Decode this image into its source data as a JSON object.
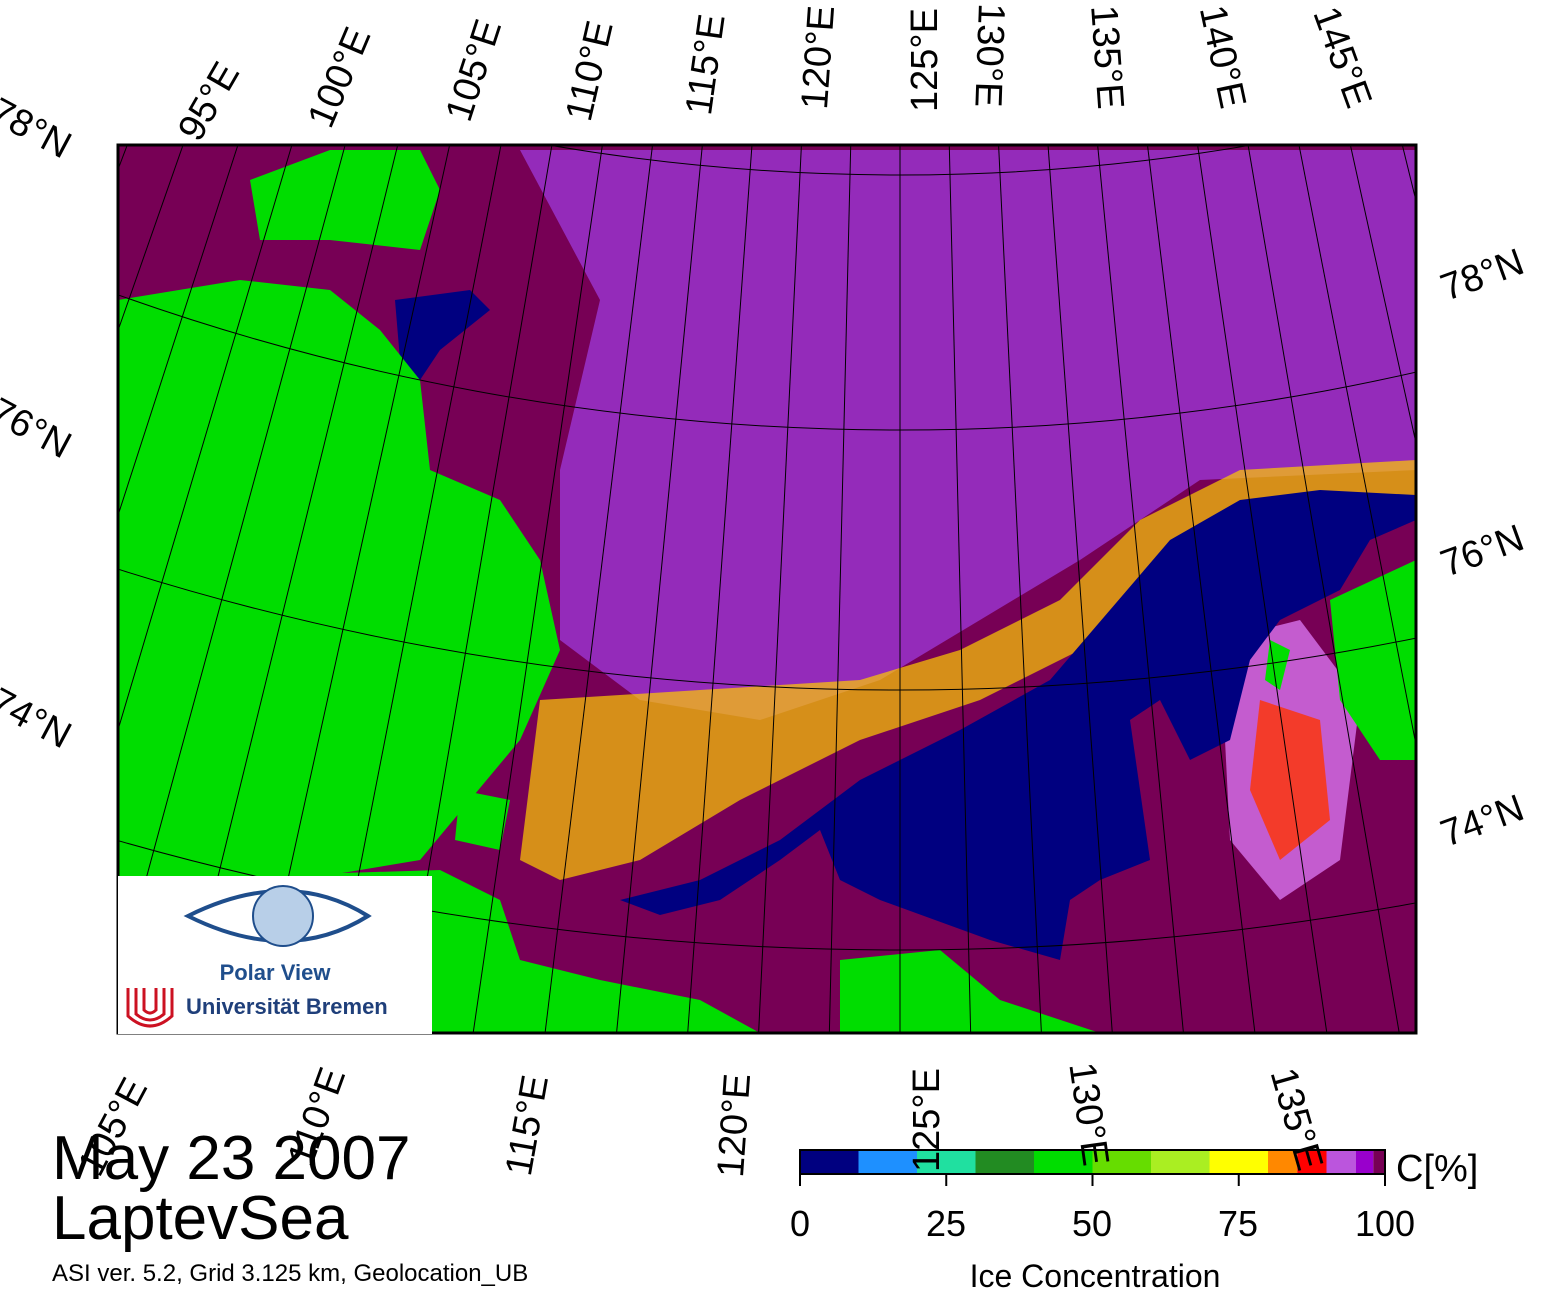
{
  "date": "May 23 2007",
  "region": "LaptevSea",
  "meta_line": "ASI ver. 5.2,  Grid 3.125 km, Geolocation_UB",
  "logo": {
    "name": "Polar View",
    "institution": "Universität Bremen"
  },
  "graticule": {
    "top_lon_labels": [
      "95°E",
      "100°E",
      "105°E",
      "110°E",
      "115°E",
      "120°E",
      "125°E",
      "130°E",
      "135°E",
      "140°E",
      "145°E"
    ],
    "bottom_lon_labels": [
      "105°E",
      "110°E",
      "115°E",
      "120°E",
      "125°E",
      "130°E",
      "135°E"
    ],
    "left_lat_labels": [
      "78°N",
      "76°N",
      "74°N"
    ],
    "right_lat_labels": [
      "78°N",
      "76°N",
      "74°N"
    ]
  },
  "colorbar": {
    "title": "Ice Concentration",
    "unit": "C[%]",
    "ticks": [
      "0",
      "25",
      "50",
      "75",
      "100"
    ],
    "colors": [
      "#000080",
      "#1e90ff",
      "#20e0a0",
      "#228b22",
      "#00dd00",
      "#66dd00",
      "#aaee22",
      "#ffff00",
      "#ff8800",
      "#ff0000",
      "#bb55dd",
      "#9900cc",
      "#770055"
    ],
    "boundaries": [
      0,
      10,
      20,
      30,
      40,
      50,
      60,
      70,
      80,
      85,
      90,
      95,
      98,
      100
    ]
  },
  "map_colors": {
    "land": "#00dd00",
    "ice_full": "#770055",
    "open_water": "#000080",
    "coast": "#777777",
    "frame": "#000000"
  }
}
